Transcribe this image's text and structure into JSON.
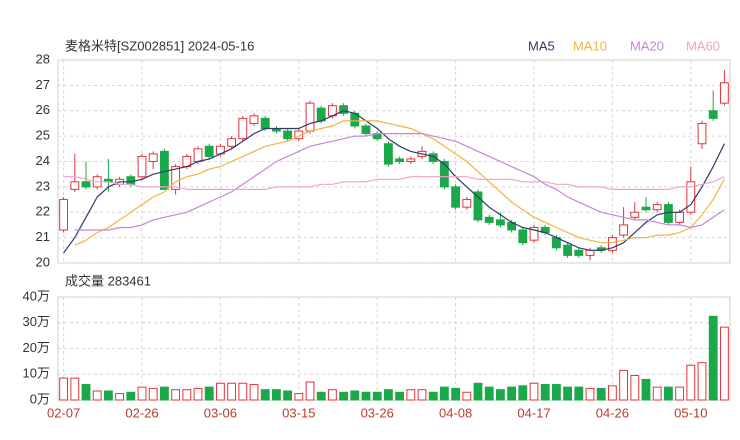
{
  "chart_data": {
    "type": "candlestick",
    "title": "麦格米特[SZ002851] 2024-05-16",
    "categories": [
      "02-07",
      null,
      null,
      null,
      null,
      null,
      null,
      "02-26",
      null,
      null,
      null,
      null,
      null,
      null,
      "03-06",
      null,
      null,
      null,
      null,
      null,
      null,
      "03-15",
      null,
      null,
      null,
      null,
      null,
      null,
      "03-26",
      null,
      null,
      null,
      null,
      null,
      null,
      "04-08",
      null,
      null,
      null,
      null,
      null,
      null,
      "04-17",
      null,
      null,
      null,
      null,
      null,
      null,
      "04-26",
      null,
      null,
      null,
      null,
      null,
      null,
      "05-10",
      null,
      null,
      null
    ],
    "open": [
      21.3,
      22.9,
      23.2,
      23.0,
      23.3,
      23.1,
      23.4,
      23.4,
      24.0,
      24.4,
      22.9,
      23.8,
      24.0,
      24.6,
      24.3,
      24.6,
      24.9,
      25.5,
      25.7,
      25.3,
      25.2,
      24.9,
      25.2,
      26.1,
      25.8,
      26.2,
      25.9,
      25.4,
      25.1,
      24.7,
      24.1,
      24.0,
      24.2,
      24.3,
      24.0,
      23.0,
      22.2,
      22.8,
      21.8,
      21.7,
      21.6,
      21.3,
      20.9,
      21.4,
      21.0,
      20.7,
      20.5,
      20.3,
      20.6,
      20.5,
      21.1,
      21.8,
      22.2,
      22.1,
      22.3,
      21.6,
      22.0,
      24.7,
      26.0,
      26.3
    ],
    "high": [
      22.6,
      24.3,
      24.0,
      23.5,
      24.1,
      23.4,
      23.5,
      24.3,
      24.4,
      24.5,
      23.9,
      24.3,
      24.6,
      24.7,
      24.7,
      25.0,
      25.8,
      25.9,
      25.8,
      25.4,
      25.3,
      25.3,
      26.4,
      26.2,
      26.3,
      26.3,
      26.0,
      25.5,
      25.2,
      24.8,
      24.2,
      24.2,
      24.6,
      24.4,
      24.1,
      23.1,
      22.6,
      22.9,
      21.9,
      22.0,
      21.7,
      21.4,
      21.5,
      21.5,
      21.1,
      20.8,
      20.6,
      20.6,
      20.7,
      21.1,
      22.2,
      22.4,
      22.6,
      22.4,
      22.4,
      22.1,
      23.8,
      25.6,
      26.8,
      27.6
    ],
    "low": [
      21.2,
      22.8,
      22.9,
      22.9,
      22.8,
      23.0,
      23.0,
      23.3,
      23.7,
      22.9,
      22.7,
      23.7,
      23.9,
      24.1,
      24.2,
      24.5,
      24.8,
      25.4,
      25.2,
      25.1,
      24.8,
      24.8,
      25.1,
      25.5,
      25.7,
      25.8,
      25.3,
      25.0,
      24.8,
      23.8,
      23.9,
      23.9,
      24.1,
      23.9,
      22.9,
      22.1,
      22.1,
      21.6,
      21.5,
      21.4,
      21.2,
      20.7,
      20.8,
      21.1,
      20.5,
      20.2,
      20.2,
      20.1,
      20.4,
      20.4,
      21.0,
      21.7,
      22.0,
      22.0,
      21.5,
      21.5,
      21.9,
      24.5,
      25.6,
      26.2
    ],
    "close": [
      22.5,
      23.2,
      23.0,
      23.4,
      23.2,
      23.3,
      23.1,
      24.2,
      24.3,
      22.9,
      23.8,
      24.2,
      24.5,
      24.2,
      24.6,
      24.9,
      25.7,
      25.8,
      25.3,
      25.2,
      24.9,
      25.2,
      26.3,
      25.6,
      26.2,
      25.9,
      25.4,
      25.1,
      24.9,
      23.9,
      24.0,
      24.1,
      24.4,
      24.0,
      23.0,
      22.2,
      22.5,
      21.7,
      21.6,
      21.5,
      21.3,
      20.8,
      21.4,
      21.2,
      20.6,
      20.3,
      20.3,
      20.5,
      20.5,
      21.0,
      21.5,
      22.0,
      22.1,
      22.3,
      21.6,
      22.0,
      23.2,
      25.5,
      25.7,
      27.1
    ],
    "up_color": "#e8323c",
    "down_color": "#1aa84a",
    "ylim": [
      20,
      28
    ],
    "yticks": [
      20,
      21,
      22,
      23,
      24,
      25,
      26,
      27,
      28
    ],
    "grid": true,
    "series": [
      {
        "name": "MA5",
        "color": "#2f3a6b",
        "values": [
          20.4,
          21.0,
          21.8,
          22.6,
          23.0,
          23.2,
          23.2,
          23.3,
          23.5,
          23.6,
          23.7,
          23.8,
          24.0,
          24.1,
          24.3,
          24.5,
          24.8,
          25.1,
          25.3,
          25.3,
          25.3,
          25.3,
          25.5,
          25.6,
          25.8,
          26.0,
          25.9,
          25.6,
          25.3,
          24.9,
          24.6,
          24.4,
          24.3,
          24.2,
          23.9,
          23.4,
          23.0,
          22.6,
          22.2,
          21.9,
          21.6,
          21.4,
          21.3,
          21.2,
          21.0,
          20.8,
          20.6,
          20.5,
          20.5,
          20.6,
          20.8,
          21.2,
          21.6,
          21.9,
          22.0,
          22.0,
          22.3,
          23.0,
          23.8,
          24.7
        ]
      },
      {
        "name": "MA10",
        "color": "#f3b43e",
        "values": [
          null,
          20.7,
          20.9,
          21.2,
          21.4,
          21.7,
          22.0,
          22.3,
          22.6,
          22.8,
          23.2,
          23.4,
          23.5,
          23.7,
          23.8,
          24.0,
          24.2,
          24.4,
          24.6,
          24.7,
          24.8,
          25.0,
          25.2,
          25.3,
          25.4,
          25.6,
          25.6,
          25.6,
          25.6,
          25.5,
          25.4,
          25.3,
          25.1,
          24.9,
          24.6,
          24.3,
          24.0,
          23.6,
          23.2,
          22.8,
          22.4,
          22.1,
          21.8,
          21.6,
          21.4,
          21.2,
          21.0,
          20.9,
          20.8,
          20.8,
          20.9,
          21.0,
          21.0,
          21.1,
          21.1,
          21.2,
          21.4,
          21.9,
          22.5,
          23.3
        ]
      },
      {
        "name": "MA20",
        "color": "#c487d9",
        "values": [
          null,
          21.3,
          21.3,
          21.3,
          21.3,
          21.4,
          21.4,
          21.5,
          21.7,
          21.8,
          21.9,
          22.0,
          22.2,
          22.4,
          22.6,
          22.8,
          23.1,
          23.4,
          23.7,
          24.0,
          24.2,
          24.4,
          24.6,
          24.7,
          24.8,
          24.9,
          25.0,
          25.0,
          25.1,
          25.1,
          25.1,
          25.1,
          25.1,
          25.0,
          24.9,
          24.8,
          24.6,
          24.4,
          24.2,
          24.0,
          23.8,
          23.6,
          23.4,
          23.1,
          22.9,
          22.6,
          22.4,
          22.2,
          22.0,
          21.9,
          21.8,
          21.7,
          21.7,
          21.6,
          21.5,
          21.5,
          21.4,
          21.5,
          21.8,
          22.1
        ]
      },
      {
        "name": "MA60",
        "color": "#f2a3c6",
        "values": [
          23.4,
          23.4,
          23.3,
          23.2,
          23.2,
          23.1,
          23.1,
          23.0,
          23.0,
          23.0,
          23.0,
          22.9,
          22.9,
          22.9,
          22.9,
          22.9,
          22.9,
          22.9,
          22.9,
          23.0,
          23.0,
          23.0,
          23.0,
          23.1,
          23.1,
          23.2,
          23.2,
          23.2,
          23.3,
          23.3,
          23.3,
          23.4,
          23.4,
          23.4,
          23.4,
          23.4,
          23.4,
          23.3,
          23.3,
          23.3,
          23.3,
          23.2,
          23.2,
          23.2,
          23.1,
          23.1,
          23.0,
          23.0,
          23.0,
          22.9,
          22.9,
          22.9,
          22.9,
          22.9,
          22.9,
          23.0,
          23.0,
          23.1,
          23.2,
          23.4
        ]
      }
    ],
    "volume_title": "成交量 283461",
    "volume": [
      8.5,
      8.5,
      6,
      3.5,
      3.5,
      2.5,
      3,
      5,
      4.5,
      5,
      4,
      4,
      4.5,
      5,
      6.5,
      6.5,
      6.5,
      6,
      4,
      4,
      3.5,
      2.5,
      7,
      3,
      4,
      3,
      3.5,
      3,
      3,
      4,
      3,
      4,
      4,
      3,
      5,
      4.5,
      3,
      6.5,
      5,
      4,
      5,
      5.5,
      6.5,
      6,
      6,
      5,
      5,
      4.5,
      4.5,
      5.5,
      11.5,
      9.5,
      8,
      5,
      5,
      5,
      13.5,
      14.5,
      32.5,
      28.3
    ],
    "vlim": [
      0,
      40
    ],
    "vticks": [
      {
        "value": 0,
        "label": "0万"
      },
      {
        "value": 10,
        "label": "10万"
      },
      {
        "value": 20,
        "label": "20万"
      },
      {
        "value": 30,
        "label": "30万"
      },
      {
        "value": 40,
        "label": "40万"
      }
    ]
  }
}
